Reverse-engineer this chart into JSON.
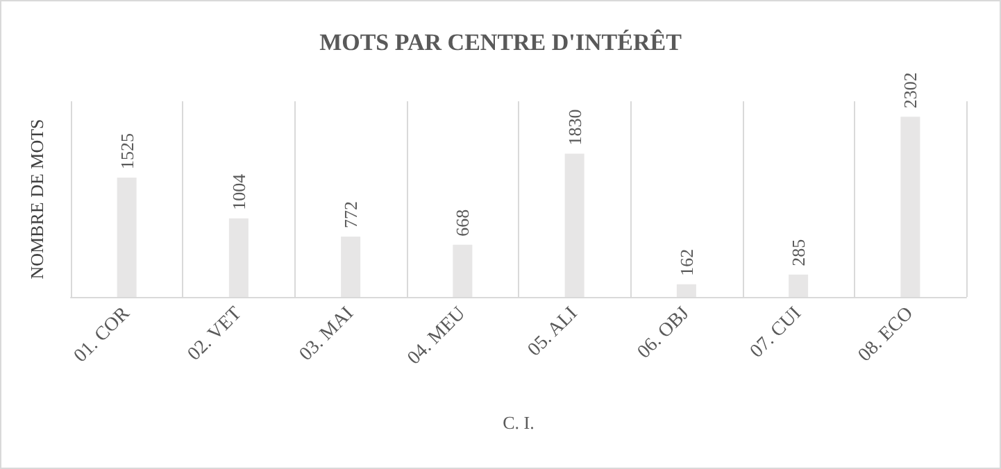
{
  "chart_data": {
    "type": "bar",
    "title": "MOTS PAR CENTRE D'INTÉRÊT",
    "xlabel": "C. I.",
    "ylabel": "NOMBRE DE MOTS",
    "categories": [
      "01. COR",
      "02. VET",
      "03. MAI",
      "04. MEU",
      "05. ALI",
      "06. OBJ",
      "07. CUI",
      "08. ECO"
    ],
    "values": [
      1525,
      1004,
      772,
      668,
      1830,
      162,
      285,
      2302
    ],
    "color": "#e7e6e6",
    "data_labels": true,
    "grid": "x",
    "tick_labels": "x"
  }
}
